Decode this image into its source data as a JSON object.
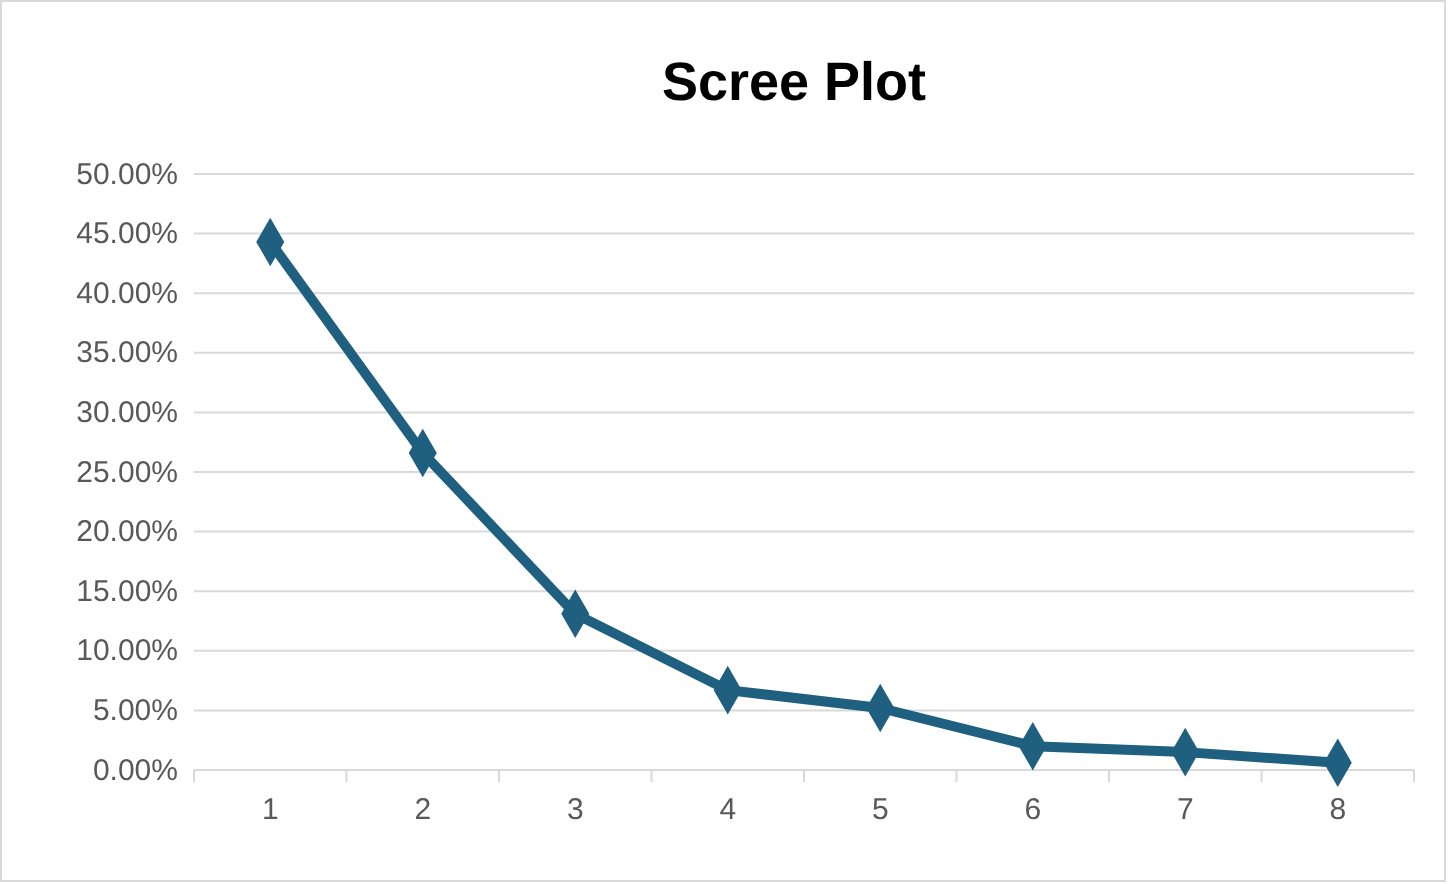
{
  "chart_data": {
    "type": "line",
    "title": "Scree Plot",
    "categories": [
      "1",
      "2",
      "3",
      "4",
      "5",
      "6",
      "7",
      "8"
    ],
    "series": [
      {
        "color": "#1f5f7f",
        "values": [
          44.3,
          26.6,
          13.1,
          6.7,
          5.2,
          2.0,
          1.5,
          0.6
        ]
      }
    ],
    "ylim": [
      0,
      50
    ],
    "yticks": [
      {
        "value": 0,
        "label": "0.00%"
      },
      {
        "value": 5,
        "label": "5.00%"
      },
      {
        "value": 10,
        "label": "10.00%"
      },
      {
        "value": 15,
        "label": "15.00%"
      },
      {
        "value": 20,
        "label": "20.00%"
      },
      {
        "value": 25,
        "label": "25.00%"
      },
      {
        "value": 30,
        "label": "30.00%"
      },
      {
        "value": 35,
        "label": "35.00%"
      },
      {
        "value": 40,
        "label": "40.00%"
      },
      {
        "value": 45,
        "label": "45.00%"
      },
      {
        "value": 50,
        "label": "50.00%"
      }
    ],
    "grid": "y",
    "marker": "diamond",
    "line_style": "solid"
  }
}
